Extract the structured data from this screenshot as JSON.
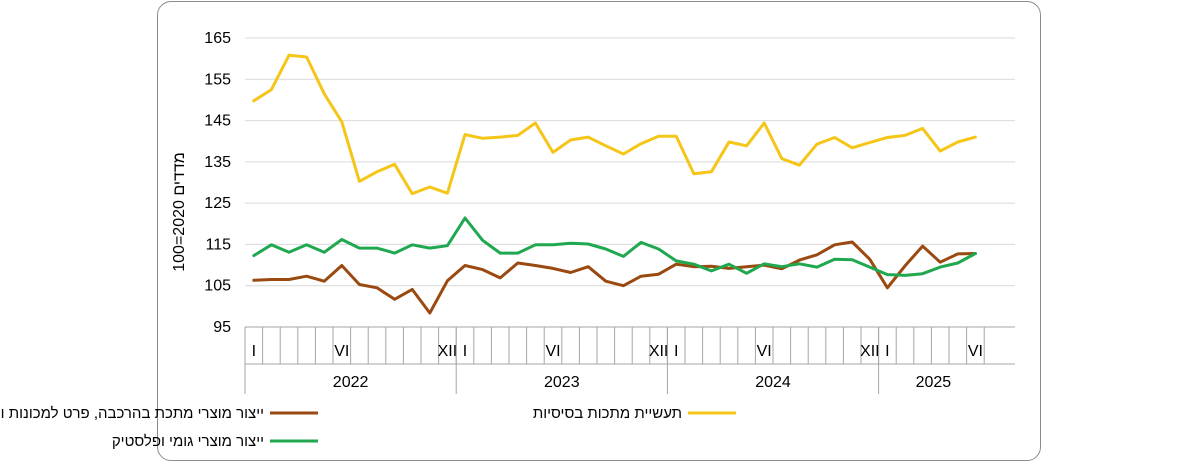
{
  "chart_data": {
    "type": "line",
    "ylabel": "מדדים 2020=100",
    "ylim": [
      95,
      165
    ],
    "yticks": [
      95,
      105,
      115,
      125,
      135,
      145,
      155,
      165
    ],
    "grid": true,
    "legend_placement": "bottom",
    "month_labels": [
      {
        "index": 0,
        "label": "I"
      },
      {
        "index": 5,
        "label": "VI"
      },
      {
        "index": 11,
        "label": "XII"
      },
      {
        "index": 12,
        "label": "I"
      },
      {
        "index": 17,
        "label": "VI"
      },
      {
        "index": 23,
        "label": "XII"
      },
      {
        "index": 24,
        "label": "I"
      },
      {
        "index": 29,
        "label": "VI"
      },
      {
        "index": 35,
        "label": "XII"
      },
      {
        "index": 36,
        "label": "I"
      },
      {
        "index": 41,
        "label": "VI"
      }
    ],
    "years": [
      {
        "label": "2022",
        "start": 0,
        "months": 12
      },
      {
        "label": "2023",
        "start": 12,
        "months": 12
      },
      {
        "label": "2024",
        "start": 24,
        "months": 12
      },
      {
        "label": "2025",
        "start": 36,
        "months": 6
      }
    ],
    "n_points": 42,
    "series": [
      {
        "name": "תעשיית מתכות בסיסיות",
        "color": "#f5c518",
        "values": [
          149.8,
          152.5,
          160.8,
          160.4,
          151.5,
          144.7,
          130.3,
          132.6,
          134.4,
          127.3,
          128.9,
          127.4,
          141.6,
          140.7,
          141.0,
          141.4,
          144.4,
          137.3,
          140.3,
          141.0,
          138.9,
          136.9,
          139.4,
          141.2,
          141.2,
          132.1,
          132.6,
          139.8,
          138.9,
          144.4,
          135.8,
          134.2,
          139.3,
          140.9,
          138.4,
          139.7,
          140.9,
          141.4,
          143.1,
          137.6,
          139.8,
          141.0
        ]
      },
      {
        "name": "ייצור מוצרי מתכת בהרכבה, פרט למכונות ולציוד",
        "color": "#9a4a10",
        "values": [
          106.3,
          106.5,
          106.5,
          107.3,
          106.1,
          109.9,
          105.3,
          104.5,
          101.7,
          104.1,
          98.4,
          106.2,
          109.9,
          108.9,
          106.9,
          110.5,
          109.9,
          109.2,
          108.2,
          109.6,
          106.1,
          105.0,
          107.3,
          107.8,
          110.2,
          109.6,
          109.7,
          109.2,
          109.6,
          110.0,
          109.1,
          111.2,
          112.5,
          114.9,
          115.6,
          111.4,
          104.5,
          109.8,
          114.6,
          110.7,
          112.7,
          112.8
        ]
      },
      {
        "name": "ייצור מוצרי גומי ופלסטיק",
        "color": "#1fa84f",
        "values": [
          112.3,
          114.9,
          113.1,
          114.9,
          113.1,
          116.2,
          114.1,
          114.1,
          112.9,
          114.9,
          114.1,
          114.7,
          121.4,
          116.0,
          112.9,
          112.9,
          114.9,
          114.9,
          115.3,
          115.1,
          113.9,
          112.1,
          115.5,
          113.9,
          111.0,
          110.2,
          108.6,
          110.2,
          108.0,
          110.3,
          109.6,
          110.3,
          109.5,
          111.4,
          111.3,
          109.5,
          107.7,
          107.5,
          107.9,
          109.5,
          110.5,
          112.8
        ]
      }
    ]
  }
}
